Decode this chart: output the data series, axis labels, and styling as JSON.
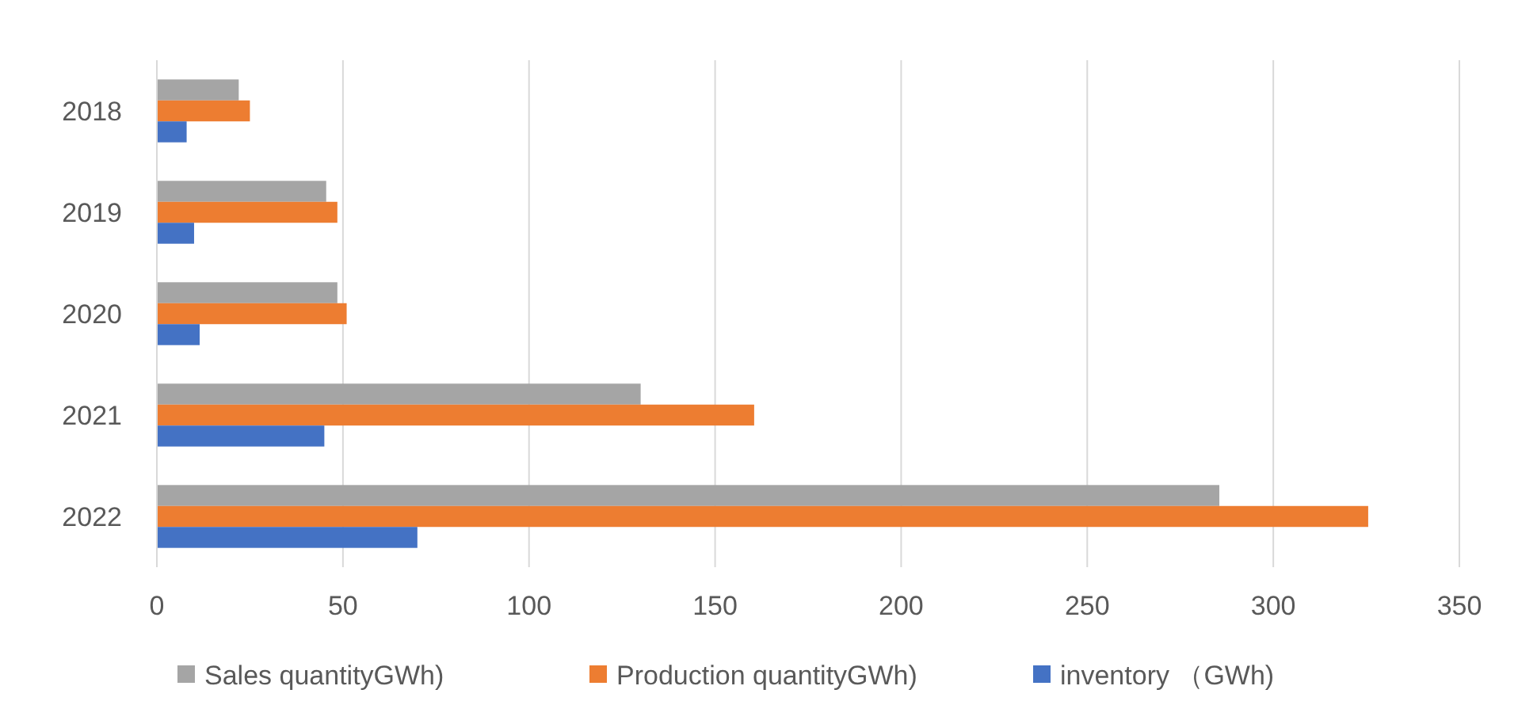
{
  "chart_data": {
    "type": "bar",
    "orientation": "horizontal",
    "categories": [
      "2018",
      "2019",
      "2020",
      "2021",
      "2022"
    ],
    "series": [
      {
        "name": "Sales quantityGWh)",
        "color": "#a5a5a5",
        "values": [
          22,
          45.5,
          48.5,
          130,
          285.5
        ]
      },
      {
        "name": "Production quantityGWh)",
        "color": "#ed7d31",
        "values": [
          25,
          48.5,
          51,
          160.5,
          325.5
        ]
      },
      {
        "name": "inventory （GWh)",
        "color": "#4472c4",
        "values": [
          8,
          10,
          11.5,
          45,
          70
        ]
      }
    ],
    "xlim": [
      0,
      350
    ],
    "xticks": [
      0,
      50,
      100,
      150,
      200,
      250,
      300,
      350
    ],
    "grid": "x",
    "legend": "bottom"
  }
}
